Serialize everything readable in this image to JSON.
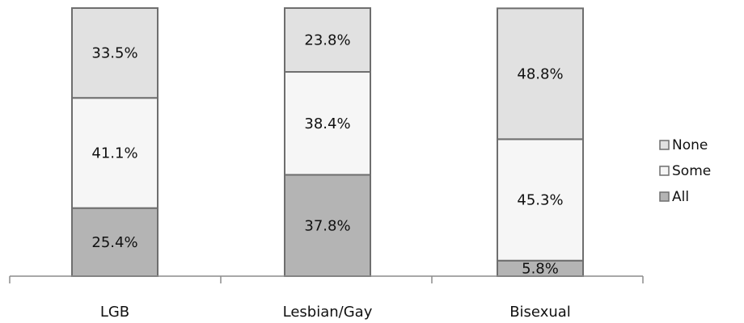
{
  "chart_data": {
    "type": "bar",
    "stacked": true,
    "categories": [
      "LGB",
      "Lesbian/Gay",
      "Bisexual"
    ],
    "series": [
      {
        "name": "All",
        "values": [
          25.4,
          37.8,
          5.8
        ],
        "labels": [
          "25.4%",
          "37.8%",
          "5.8%"
        ],
        "color": "#b4b4b4"
      },
      {
        "name": "Some",
        "values": [
          41.1,
          38.4,
          45.3
        ],
        "labels": [
          "41.1%",
          "38.4%",
          "45.3%"
        ],
        "color": "#f6f6f6"
      },
      {
        "name": "None",
        "values": [
          33.5,
          23.8,
          48.8
        ],
        "labels": [
          "33.5%",
          "23.8%",
          "48.8%"
        ],
        "color": "#e1e1e1"
      }
    ],
    "legend_order": [
      "None",
      "Some",
      "All"
    ],
    "ylim": [
      0,
      100
    ],
    "grid": false,
    "legend_position": "right",
    "title": "",
    "xlabel": "",
    "ylabel": ""
  }
}
